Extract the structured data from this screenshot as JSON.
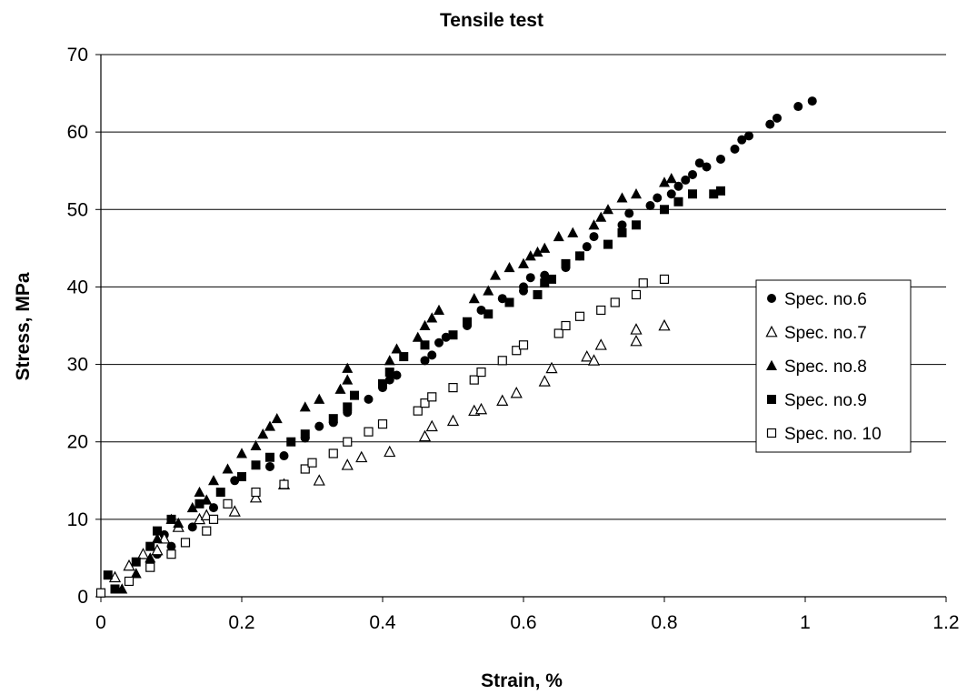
{
  "chart_data": {
    "type": "scatter",
    "title": "Tensile test",
    "xlabel": "Strain, %",
    "ylabel": "Stress, MPa",
    "xlim": [
      0,
      1.2
    ],
    "ylim": [
      0,
      70
    ],
    "x_ticks": [
      "0",
      "0.2",
      "0.4",
      "0.6",
      "0.8",
      "1",
      "1.2"
    ],
    "y_ticks": [
      "0",
      "10",
      "20",
      "30",
      "40",
      "50",
      "60",
      "70"
    ],
    "grid": "horizontal",
    "legend_position": "right",
    "series": [
      {
        "name": "Spec. no.6",
        "marker": "filled-circle",
        "points": [
          [
            0.02,
            1.0
          ],
          [
            0.07,
            4.5
          ],
          [
            0.08,
            5.5
          ],
          [
            0.09,
            8.0
          ],
          [
            0.1,
            6.5
          ],
          [
            0.13,
            9.0
          ],
          [
            0.16,
            11.5
          ],
          [
            0.19,
            15.0
          ],
          [
            0.22,
            13.5
          ],
          [
            0.24,
            16.8
          ],
          [
            0.26,
            18.2
          ],
          [
            0.29,
            20.5
          ],
          [
            0.31,
            22.0
          ],
          [
            0.33,
            22.5
          ],
          [
            0.35,
            23.8
          ],
          [
            0.38,
            25.5
          ],
          [
            0.4,
            27.0
          ],
          [
            0.41,
            28.0
          ],
          [
            0.42,
            28.6
          ],
          [
            0.46,
            30.5
          ],
          [
            0.47,
            31.2
          ],
          [
            0.48,
            32.8
          ],
          [
            0.49,
            33.5
          ],
          [
            0.52,
            35.0
          ],
          [
            0.54,
            37.0
          ],
          [
            0.57,
            38.5
          ],
          [
            0.6,
            39.5
          ],
          [
            0.6,
            40.0
          ],
          [
            0.61,
            41.2
          ],
          [
            0.63,
            41.5
          ],
          [
            0.66,
            42.5
          ],
          [
            0.68,
            44.0
          ],
          [
            0.69,
            45.2
          ],
          [
            0.7,
            46.5
          ],
          [
            0.74,
            48.0
          ],
          [
            0.75,
            49.5
          ],
          [
            0.78,
            50.5
          ],
          [
            0.79,
            51.5
          ],
          [
            0.81,
            52.0
          ],
          [
            0.82,
            53.0
          ],
          [
            0.83,
            53.8
          ],
          [
            0.84,
            54.5
          ],
          [
            0.85,
            56.0
          ],
          [
            0.86,
            55.5
          ],
          [
            0.88,
            56.5
          ],
          [
            0.9,
            57.8
          ],
          [
            0.91,
            59.0
          ],
          [
            0.92,
            59.5
          ],
          [
            0.95,
            61.0
          ],
          [
            0.96,
            61.8
          ],
          [
            0.99,
            63.3
          ],
          [
            1.01,
            64.0
          ]
        ]
      },
      {
        "name": "Spec. no.7",
        "marker": "open-triangle",
        "points": [
          [
            0.02,
            2.5
          ],
          [
            0.04,
            4.0
          ],
          [
            0.06,
            5.5
          ],
          [
            0.08,
            6.0
          ],
          [
            0.09,
            7.5
          ],
          [
            0.11,
            9.0
          ],
          [
            0.14,
            10.0
          ],
          [
            0.15,
            10.5
          ],
          [
            0.19,
            11.0
          ],
          [
            0.22,
            12.8
          ],
          [
            0.26,
            14.5
          ],
          [
            0.31,
            15.0
          ],
          [
            0.35,
            17.0
          ],
          [
            0.37,
            18.0
          ],
          [
            0.41,
            18.7
          ],
          [
            0.46,
            20.7
          ],
          [
            0.47,
            22.0
          ],
          [
            0.5,
            22.7
          ],
          [
            0.53,
            24.0
          ],
          [
            0.54,
            24.2
          ],
          [
            0.57,
            25.3
          ],
          [
            0.59,
            26.3
          ],
          [
            0.63,
            27.8
          ],
          [
            0.64,
            29.5
          ],
          [
            0.69,
            31.0
          ],
          [
            0.7,
            30.5
          ],
          [
            0.71,
            32.5
          ],
          [
            0.76,
            33.0
          ],
          [
            0.76,
            34.5
          ],
          [
            0.8,
            35.0
          ]
        ]
      },
      {
        "name": "Spec. no.8",
        "marker": "filled-triangle",
        "points": [
          [
            0.03,
            1.0
          ],
          [
            0.05,
            3.0
          ],
          [
            0.07,
            5.0
          ],
          [
            0.08,
            7.5
          ],
          [
            0.1,
            10.0
          ],
          [
            0.11,
            9.5
          ],
          [
            0.13,
            11.5
          ],
          [
            0.14,
            13.5
          ],
          [
            0.15,
            12.5
          ],
          [
            0.16,
            15.0
          ],
          [
            0.18,
            16.5
          ],
          [
            0.2,
            18.5
          ],
          [
            0.22,
            19.5
          ],
          [
            0.23,
            21.0
          ],
          [
            0.24,
            22.0
          ],
          [
            0.25,
            23.0
          ],
          [
            0.29,
            24.5
          ],
          [
            0.31,
            25.5
          ],
          [
            0.34,
            26.8
          ],
          [
            0.35,
            28.0
          ],
          [
            0.35,
            29.5
          ],
          [
            0.41,
            30.5
          ],
          [
            0.42,
            32.0
          ],
          [
            0.45,
            33.5
          ],
          [
            0.46,
            35.0
          ],
          [
            0.47,
            36.0
          ],
          [
            0.48,
            37.0
          ],
          [
            0.53,
            38.5
          ],
          [
            0.55,
            39.5
          ],
          [
            0.56,
            41.5
          ],
          [
            0.58,
            42.5
          ],
          [
            0.6,
            43.0
          ],
          [
            0.61,
            44.0
          ],
          [
            0.62,
            44.5
          ],
          [
            0.63,
            45.0
          ],
          [
            0.65,
            46.5
          ],
          [
            0.67,
            47.0
          ],
          [
            0.7,
            48.0
          ],
          [
            0.71,
            49.0
          ],
          [
            0.72,
            50.0
          ],
          [
            0.74,
            51.5
          ],
          [
            0.76,
            52.0
          ],
          [
            0.8,
            53.5
          ],
          [
            0.81,
            54.0
          ]
        ]
      },
      {
        "name": "Spec. no.9",
        "marker": "filled-square",
        "points": [
          [
            0.01,
            2.8
          ],
          [
            0.02,
            1.0
          ],
          [
            0.05,
            4.5
          ],
          [
            0.07,
            6.5
          ],
          [
            0.08,
            8.5
          ],
          [
            0.1,
            10.0
          ],
          [
            0.14,
            12.0
          ],
          [
            0.17,
            13.5
          ],
          [
            0.2,
            15.5
          ],
          [
            0.22,
            17.0
          ],
          [
            0.24,
            18.0
          ],
          [
            0.27,
            20.0
          ],
          [
            0.29,
            21.0
          ],
          [
            0.33,
            23.0
          ],
          [
            0.35,
            24.5
          ],
          [
            0.36,
            26.0
          ],
          [
            0.4,
            27.5
          ],
          [
            0.41,
            29.0
          ],
          [
            0.43,
            31.0
          ],
          [
            0.46,
            32.5
          ],
          [
            0.5,
            33.8
          ],
          [
            0.52,
            35.5
          ],
          [
            0.55,
            36.5
          ],
          [
            0.58,
            38.0
          ],
          [
            0.62,
            39.0
          ],
          [
            0.63,
            40.5
          ],
          [
            0.64,
            41.0
          ],
          [
            0.66,
            43.0
          ],
          [
            0.68,
            44.0
          ],
          [
            0.72,
            45.5
          ],
          [
            0.74,
            47.0
          ],
          [
            0.76,
            48.0
          ],
          [
            0.8,
            50.0
          ],
          [
            0.82,
            51.0
          ],
          [
            0.84,
            52.0
          ],
          [
            0.87,
            52.0
          ],
          [
            0.88,
            52.4
          ]
        ]
      },
      {
        "name": "Spec. no. 10",
        "marker": "open-square",
        "points": [
          [
            0.0,
            0.5
          ],
          [
            0.04,
            2.0
          ],
          [
            0.07,
            3.8
          ],
          [
            0.1,
            5.5
          ],
          [
            0.12,
            7.0
          ],
          [
            0.15,
            8.5
          ],
          [
            0.16,
            10.0
          ],
          [
            0.18,
            12.0
          ],
          [
            0.22,
            13.5
          ],
          [
            0.26,
            14.5
          ],
          [
            0.29,
            16.5
          ],
          [
            0.3,
            17.3
          ],
          [
            0.33,
            18.5
          ],
          [
            0.35,
            20.0
          ],
          [
            0.38,
            21.3
          ],
          [
            0.4,
            22.3
          ],
          [
            0.45,
            24.0
          ],
          [
            0.46,
            25.0
          ],
          [
            0.47,
            25.8
          ],
          [
            0.5,
            27.0
          ],
          [
            0.53,
            28.0
          ],
          [
            0.54,
            29.0
          ],
          [
            0.57,
            30.5
          ],
          [
            0.59,
            31.8
          ],
          [
            0.6,
            32.5
          ],
          [
            0.65,
            34.0
          ],
          [
            0.66,
            35.0
          ],
          [
            0.68,
            36.2
          ],
          [
            0.71,
            37.0
          ],
          [
            0.73,
            38.0
          ],
          [
            0.76,
            39.0
          ],
          [
            0.77,
            40.5
          ],
          [
            0.8,
            41.0
          ]
        ]
      }
    ]
  }
}
